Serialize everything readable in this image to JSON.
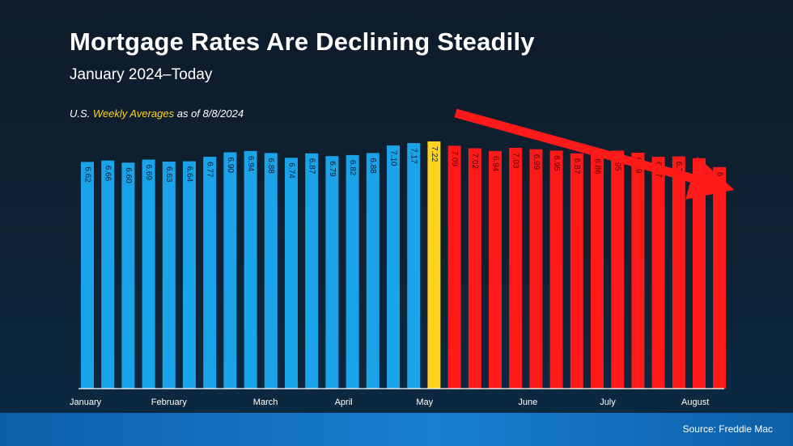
{
  "header": {
    "title": "Mortgage Rates Are Declining Steadily",
    "subtitle": "January 2024–Today",
    "note_prefix": "U.S. ",
    "note_highlight": "Weekly Averages",
    "note_suffix": " as of 8/8/2024"
  },
  "footer": {
    "source": "Source: Freddie Mac"
  },
  "colors": {
    "background": "#0d1b2a",
    "bar_past": "#1aa3e8",
    "bar_peak": "#ffd21f",
    "bar_declining": "#ff1a1a",
    "trend_arrow": "#ff1a1a",
    "footer_band": "#1a7fd1"
  },
  "chart_data": {
    "type": "bar",
    "title": "Mortgage Rates Are Declining Steadily",
    "subtitle": "January 2024–Today",
    "ylabel": "",
    "xlabel": "",
    "ylim": [
      0,
      7.55
    ],
    "series": [
      {
        "name": "U.S. Weekly Averages",
        "values": [
          6.62,
          6.66,
          6.6,
          6.69,
          6.63,
          6.64,
          6.77,
          6.9,
          6.94,
          6.88,
          6.74,
          6.87,
          6.79,
          6.82,
          6.88,
          7.1,
          7.17,
          7.22,
          7.09,
          7.02,
          6.94,
          7.03,
          6.99,
          6.95,
          6.87,
          6.86,
          6.95,
          6.89,
          6.77,
          6.78,
          6.73,
          6.47
        ],
        "labels": [
          "6.62",
          "6.66",
          "6.60",
          "6.69",
          "6.63",
          "6.64",
          "6.77",
          "6.90",
          "6.94",
          "6.88",
          "6.74",
          "6.87",
          "6.79",
          "6.82",
          "6.88",
          "7.10",
          "7.17",
          "7.22",
          "7.09",
          "7.02",
          "6.94",
          "7.03",
          "6.99",
          "6.95",
          "6.87",
          "6.86",
          "6.95",
          "6.89",
          "6.77",
          "6.78",
          "6.73",
          "6.47"
        ],
        "groups": [
          "past",
          "past",
          "past",
          "past",
          "past",
          "past",
          "past",
          "past",
          "past",
          "past",
          "past",
          "past",
          "past",
          "past",
          "past",
          "past",
          "past",
          "peak",
          "declining",
          "declining",
          "declining",
          "declining",
          "declining",
          "declining",
          "declining",
          "declining",
          "declining",
          "declining",
          "declining",
          "declining",
          "declining",
          "declining"
        ]
      }
    ],
    "month_labels": [
      {
        "label": "January",
        "index": 0
      },
      {
        "label": "February",
        "index": 4
      },
      {
        "label": "March",
        "index": 9
      },
      {
        "label": "April",
        "index": 13
      },
      {
        "label": "May",
        "index": 17
      },
      {
        "label": "June",
        "index": 22
      },
      {
        "label": "July",
        "index": 26
      },
      {
        "label": "August",
        "index": 30
      }
    ],
    "annotation": "downward trend arrow over the declining bars"
  }
}
